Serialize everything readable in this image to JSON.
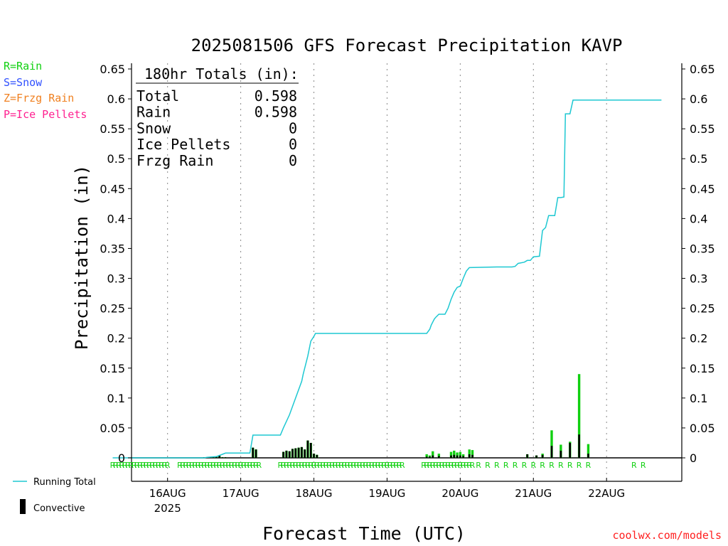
{
  "chart_data": {
    "type": "bar",
    "title": "2025081506 GFS Forecast Precipitation KAVP",
    "xlabel": "Forecast Time (UTC)",
    "ylabel": "Precipitation (in)",
    "ylim": [
      0,
      0.65
    ],
    "yticks": [
      "0",
      "0.05",
      "0.1",
      "0.15",
      "0.2",
      "0.25",
      "0.3",
      "0.35",
      "0.4",
      "0.45",
      "0.5",
      "0.55",
      "0.6",
      "0.65"
    ],
    "xticks": [
      {
        "hour": 18,
        "label": "16AUG",
        "sub": "2025"
      },
      {
        "hour": 42,
        "label": "17AUG",
        "sub": ""
      },
      {
        "hour": 66,
        "label": "18AUG",
        "sub": ""
      },
      {
        "hour": 90,
        "label": "19AUG",
        "sub": ""
      },
      {
        "hour": 114,
        "label": "20AUG",
        "sub": ""
      },
      {
        "hour": 138,
        "label": "21AUG",
        "sub": ""
      },
      {
        "hour": 162,
        "label": "22AUG",
        "sub": ""
      }
    ],
    "xlim_hours": [
      0,
      180
    ],
    "grid": "vertical dotted",
    "totals": {
      "header": "180hr Totals (in):",
      "rows": [
        {
          "label": "Total",
          "value": "0.598"
        },
        {
          "label": "Rain",
          "value": "0.598"
        },
        {
          "label": "Snow",
          "value": "0"
        },
        {
          "label": "Ice Pellets",
          "value": "0"
        },
        {
          "label": "Frzg Rain",
          "value": "0"
        }
      ]
    },
    "running_total": {
      "name": "Running Total",
      "color": "#1ec8d2",
      "points": [
        [
          0,
          0
        ],
        [
          30,
          0
        ],
        [
          31,
          0.001
        ],
        [
          34,
          0.002
        ],
        [
          35,
          0.004
        ],
        [
          36,
          0.006
        ],
        [
          37,
          0.008
        ],
        [
          45,
          0.008
        ],
        [
          46,
          0.038
        ],
        [
          55,
          0.038
        ],
        [
          56,
          0.05
        ],
        [
          58,
          0.072
        ],
        [
          60,
          0.1
        ],
        [
          62,
          0.128
        ],
        [
          62.5,
          0.14
        ],
        [
          64,
          0.17
        ],
        [
          65,
          0.195
        ],
        [
          66,
          0.203
        ],
        [
          66.5,
          0.208
        ],
        [
          103,
          0.208
        ],
        [
          104,
          0.215
        ],
        [
          104.5,
          0.222
        ],
        [
          105.5,
          0.232
        ],
        [
          106,
          0.235
        ],
        [
          107,
          0.24
        ],
        [
          109,
          0.24
        ],
        [
          110,
          0.25
        ],
        [
          111,
          0.265
        ],
        [
          112,
          0.277
        ],
        [
          113,
          0.285
        ],
        [
          114,
          0.287
        ],
        [
          115,
          0.3
        ],
        [
          116,
          0.312
        ],
        [
          117,
          0.318
        ],
        [
          126,
          0.319
        ],
        [
          131,
          0.319
        ],
        [
          132,
          0.32
        ],
        [
          133,
          0.325
        ],
        [
          135,
          0.327
        ],
        [
          136,
          0.33
        ],
        [
          137,
          0.33
        ],
        [
          138,
          0.336
        ],
        [
          140,
          0.337
        ],
        [
          141,
          0.38
        ],
        [
          142,
          0.385
        ],
        [
          143,
          0.405
        ],
        [
          145,
          0.405
        ],
        [
          146,
          0.435
        ],
        [
          147,
          0.435
        ],
        [
          148,
          0.436
        ],
        [
          148.5,
          0.575
        ],
        [
          150,
          0.575
        ],
        [
          151,
          0.598
        ],
        [
          180,
          0.598
        ]
      ]
    },
    "bars": {
      "total_color": "#10d010",
      "convective_color": "#000000",
      "items": [
        [
          30,
          0.001,
          0.001
        ],
        [
          31,
          0.001,
          0.001
        ],
        [
          32,
          0.001,
          0.001
        ],
        [
          33,
          0.002,
          0.002
        ],
        [
          34,
          0.002,
          0.002
        ],
        [
          35,
          0.004,
          0.004
        ],
        [
          36,
          0.001,
          0.001
        ],
        [
          37,
          0.001,
          0.001
        ],
        [
          46,
          0.017,
          0.017
        ],
        [
          47,
          0.014,
          0.014
        ],
        [
          56,
          0.01,
          0.01
        ],
        [
          57,
          0.012,
          0.012
        ],
        [
          58,
          0.011,
          0.011
        ],
        [
          59,
          0.015,
          0.015
        ],
        [
          60,
          0.016,
          0.016
        ],
        [
          61,
          0.017,
          0.017
        ],
        [
          62,
          0.018,
          0.018
        ],
        [
          63,
          0.014,
          0.014
        ],
        [
          64,
          0.029,
          0.029
        ],
        [
          65,
          0.025,
          0.025
        ],
        [
          66,
          0.007,
          0.007
        ],
        [
          67,
          0.005,
          0.005
        ],
        [
          103,
          0.006,
          0.002
        ],
        [
          104,
          0.004,
          0.002
        ],
        [
          105,
          0.011,
          0.004
        ],
        [
          107,
          0.007,
          0.003
        ],
        [
          111,
          0.01,
          0.004
        ],
        [
          112,
          0.012,
          0.005
        ],
        [
          113,
          0.009,
          0.004
        ],
        [
          114,
          0.01,
          0.004
        ],
        [
          115,
          0.006,
          0.003
        ],
        [
          117,
          0.014,
          0.006
        ],
        [
          118,
          0.013,
          0.005
        ],
        [
          136,
          0.006,
          0.006
        ],
        [
          139,
          0.004,
          0.004
        ],
        [
          141,
          0.007,
          0.005
        ],
        [
          144,
          0.046,
          0.02
        ],
        [
          147,
          0.022,
          0.012
        ],
        [
          150,
          0.027,
          0.025
        ],
        [
          153,
          0.14,
          0.039
        ],
        [
          156,
          0.023,
          0.007
        ]
      ]
    },
    "precip_type_row": {
      "color": "#10d010",
      "ranges": [
        [
          0,
          18
        ],
        [
          22,
          32
        ],
        [
          33,
          48
        ],
        [
          55,
          95
        ],
        [
          102,
          118
        ]
      ],
      "singles": [
        120,
        123,
        126,
        129,
        132,
        135,
        138,
        141,
        144,
        147,
        150,
        153,
        156,
        171,
        174
      ]
    },
    "legend_types": [
      {
        "text": "R=Rain",
        "color": "#10d010"
      },
      {
        "text": "S=Snow",
        "color": "#3050ff"
      },
      {
        "text": "Z=Frzg Rain",
        "color": "#f08020"
      },
      {
        "text": "P=Ice Pellets",
        "color": "#ff2090"
      }
    ],
    "legend_series": [
      {
        "text": "Running Total",
        "kind": "line",
        "color": "#1ec8d2"
      },
      {
        "text": "Convective",
        "kind": "bar",
        "color": "#000000"
      }
    ],
    "source": "coolwx.com/models"
  }
}
